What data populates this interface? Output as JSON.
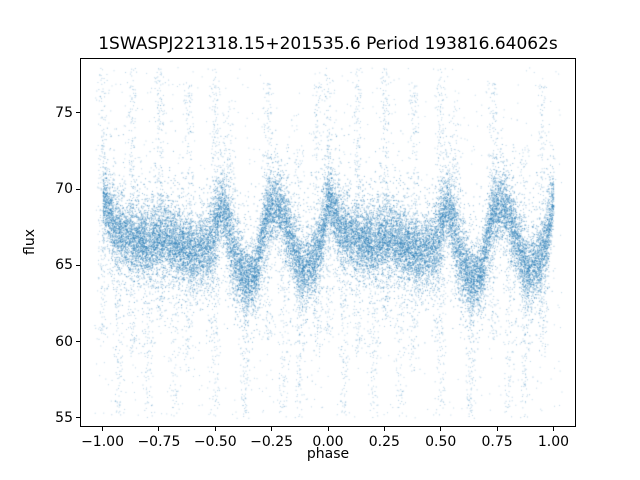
{
  "chart_data": {
    "type": "scatter",
    "title": "1SWASPJ221318.15+201535.6 Period 193816.64062s",
    "xlabel": "phase",
    "ylabel": "flux",
    "xlim": [
      -1.1,
      1.1
    ],
    "ylim": [
      54.4,
      78.6
    ],
    "xticks": [
      -1.0,
      -0.75,
      -0.5,
      -0.25,
      0.0,
      0.25,
      0.5,
      0.75,
      1.0
    ],
    "xtick_labels": [
      "−1.00",
      "−0.75",
      "−0.50",
      "−0.25",
      "0.00",
      "0.25",
      "0.50",
      "0.75",
      "1.00"
    ],
    "yticks": [
      55,
      60,
      65,
      70,
      75
    ],
    "ytick_labels": [
      "55",
      "60",
      "65",
      "70",
      "75"
    ],
    "marker_color": "#1f77b4",
    "marker_alpha_main": 0.5,
    "marker_alpha_streak": 0.35,
    "marker_alpha_background": 0.3,
    "grid": false,
    "legend": "none",
    "n_points_per_period": 13000,
    "period_copies": [
      0,
      -1
    ],
    "trend": [
      [
        0.0,
        69.4,
        0.9
      ],
      [
        0.05,
        67.6,
        1.2
      ],
      [
        0.12,
        66.7,
        1.1
      ],
      [
        0.2,
        66.5,
        1.1
      ],
      [
        0.27,
        66.9,
        1.2
      ],
      [
        0.34,
        66.2,
        1.1
      ],
      [
        0.42,
        65.7,
        1.1
      ],
      [
        0.48,
        66.5,
        1.4
      ],
      [
        0.53,
        69.0,
        1.0
      ],
      [
        0.58,
        66.0,
        1.5
      ],
      [
        0.63,
        64.0,
        1.0
      ],
      [
        0.68,
        64.6,
        1.1
      ],
      [
        0.73,
        68.6,
        1.1
      ],
      [
        0.78,
        68.9,
        1.0
      ],
      [
        0.83,
        67.0,
        1.3
      ],
      [
        0.88,
        64.6,
        1.0
      ],
      [
        0.93,
        65.2,
        1.1
      ],
      [
        0.97,
        66.8,
        1.2
      ],
      [
        1.0,
        69.4,
        0.9
      ]
    ],
    "streaks": [
      {
        "phase": 0.0,
        "lo": 60,
        "hi": 78,
        "n": 240
      },
      {
        "phase": 0.07,
        "lo": 55,
        "hi": 67,
        "n": 140
      },
      {
        "phase": 0.13,
        "lo": 59,
        "hi": 78,
        "n": 220
      },
      {
        "phase": 0.2,
        "lo": 55,
        "hi": 66,
        "n": 120
      },
      {
        "phase": 0.25,
        "lo": 61,
        "hi": 78,
        "n": 240
      },
      {
        "phase": 0.32,
        "lo": 55,
        "hi": 66,
        "n": 100
      },
      {
        "phase": 0.38,
        "lo": 58,
        "hi": 77,
        "n": 200
      },
      {
        "phase": 0.5,
        "lo": 55,
        "hi": 78,
        "n": 300
      },
      {
        "phase": 0.56,
        "lo": 63,
        "hi": 76,
        "n": 150
      },
      {
        "phase": 0.63,
        "lo": 55,
        "hi": 66,
        "n": 130
      },
      {
        "phase": 0.73,
        "lo": 60,
        "hi": 77,
        "n": 220
      },
      {
        "phase": 0.8,
        "lo": 55,
        "hi": 65,
        "n": 100
      },
      {
        "phase": 0.87,
        "lo": 55,
        "hi": 73,
        "n": 170
      },
      {
        "phase": 0.95,
        "lo": 59,
        "hi": 77,
        "n": 190
      }
    ],
    "background": {
      "n": 900,
      "lo": 55,
      "hi": 78
    }
  }
}
